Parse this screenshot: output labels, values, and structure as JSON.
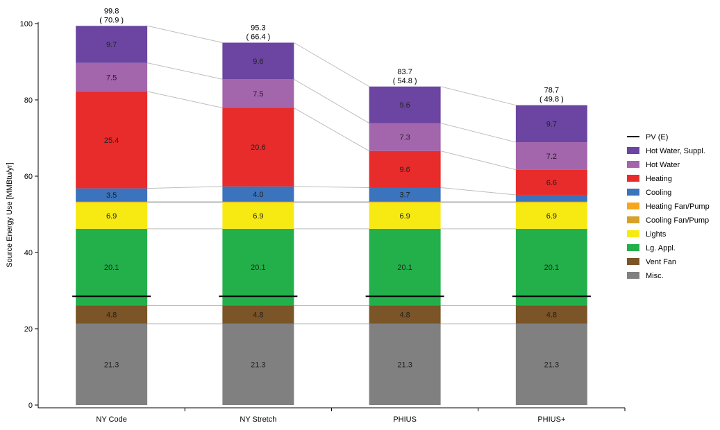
{
  "chart_data": {
    "type": "bar",
    "stacked": true,
    "ylabel": "Source Energy Use [MMBtu/yr]",
    "ylim": [
      0,
      100
    ],
    "yticks": [
      0,
      20,
      40,
      60,
      80,
      100
    ],
    "grid": false,
    "legend_position": "right",
    "categories": [
      "NY Code",
      "NY Stretch",
      "PHIUS",
      "PHIUS+"
    ],
    "totals": [
      {
        "gross": "99.8",
        "net": "( 70.9 )"
      },
      {
        "gross": "95.3",
        "net": "( 66.4 )"
      },
      {
        "gross": "83.7",
        "net": "( 54.8 )"
      },
      {
        "gross": "78.7",
        "net": "( 49.8 )"
      }
    ],
    "pv": {
      "name": "PV (E)",
      "color": "#000000",
      "values": [
        28.5,
        28.5,
        28.5,
        28.5
      ]
    },
    "series": [
      {
        "name": "Misc.",
        "color": "#808080",
        "values": [
          21.3,
          21.3,
          21.3,
          21.3
        ],
        "labels": [
          "21.3",
          "21.3",
          "21.3",
          "21.3"
        ]
      },
      {
        "name": "Vent Fan",
        "color": "#7b5427",
        "values": [
          4.8,
          4.8,
          4.8,
          4.8
        ],
        "labels": [
          "4.8",
          "4.8",
          "4.8",
          "4.8"
        ]
      },
      {
        "name": "Lg. Appl.",
        "color": "#23b04b",
        "values": [
          20.1,
          20.1,
          20.1,
          20.1
        ],
        "labels": [
          "20.1",
          "20.1",
          "20.1",
          "20.1"
        ]
      },
      {
        "name": "Lights",
        "color": "#f7ea13",
        "values": [
          6.9,
          6.9,
          6.9,
          6.9
        ],
        "labels": [
          "6.9",
          "6.9",
          "6.9",
          "6.9"
        ]
      },
      {
        "name": "Cooling Fan/Pump",
        "color": "#d6a128",
        "values": [
          0.1,
          0.1,
          0.1,
          0.1
        ],
        "labels": [
          "",
          "",
          "",
          ""
        ]
      },
      {
        "name": "Heating Fan/Pump",
        "color": "#f7a51c",
        "values": [
          0.1,
          0.1,
          0.1,
          0.1
        ],
        "labels": [
          "",
          "",
          "",
          ""
        ]
      },
      {
        "name": "Cooling",
        "color": "#3b73bc",
        "values": [
          3.5,
          4.0,
          3.7,
          1.8
        ],
        "labels": [
          "3.5",
          "4.0",
          "3.7",
          ""
        ]
      },
      {
        "name": "Heating",
        "color": "#e82b2b",
        "values": [
          25.4,
          20.6,
          9.6,
          6.6
        ],
        "labels": [
          "25.4",
          "20.6",
          "9.6",
          "6.6"
        ]
      },
      {
        "name": "Hot Water",
        "color": "#a365ac",
        "values": [
          7.5,
          7.5,
          7.3,
          7.2
        ],
        "labels": [
          "7.5",
          "7.5",
          "7.3",
          "7.2"
        ]
      },
      {
        "name": "Hot Water, Suppl.",
        "color": "#6b45a1",
        "values": [
          9.7,
          9.6,
          9.6,
          9.7
        ],
        "labels": [
          "9.7",
          "9.6",
          "9.6",
          "9.7"
        ]
      }
    ],
    "legend_order": [
      "PV (E)",
      "Hot Water, Suppl.",
      "Hot Water",
      "Heating",
      "Cooling",
      "Heating Fan/Pump",
      "Cooling Fan/Pump",
      "Lights",
      "Lg. Appl.",
      "Vent Fan",
      "Misc."
    ]
  }
}
